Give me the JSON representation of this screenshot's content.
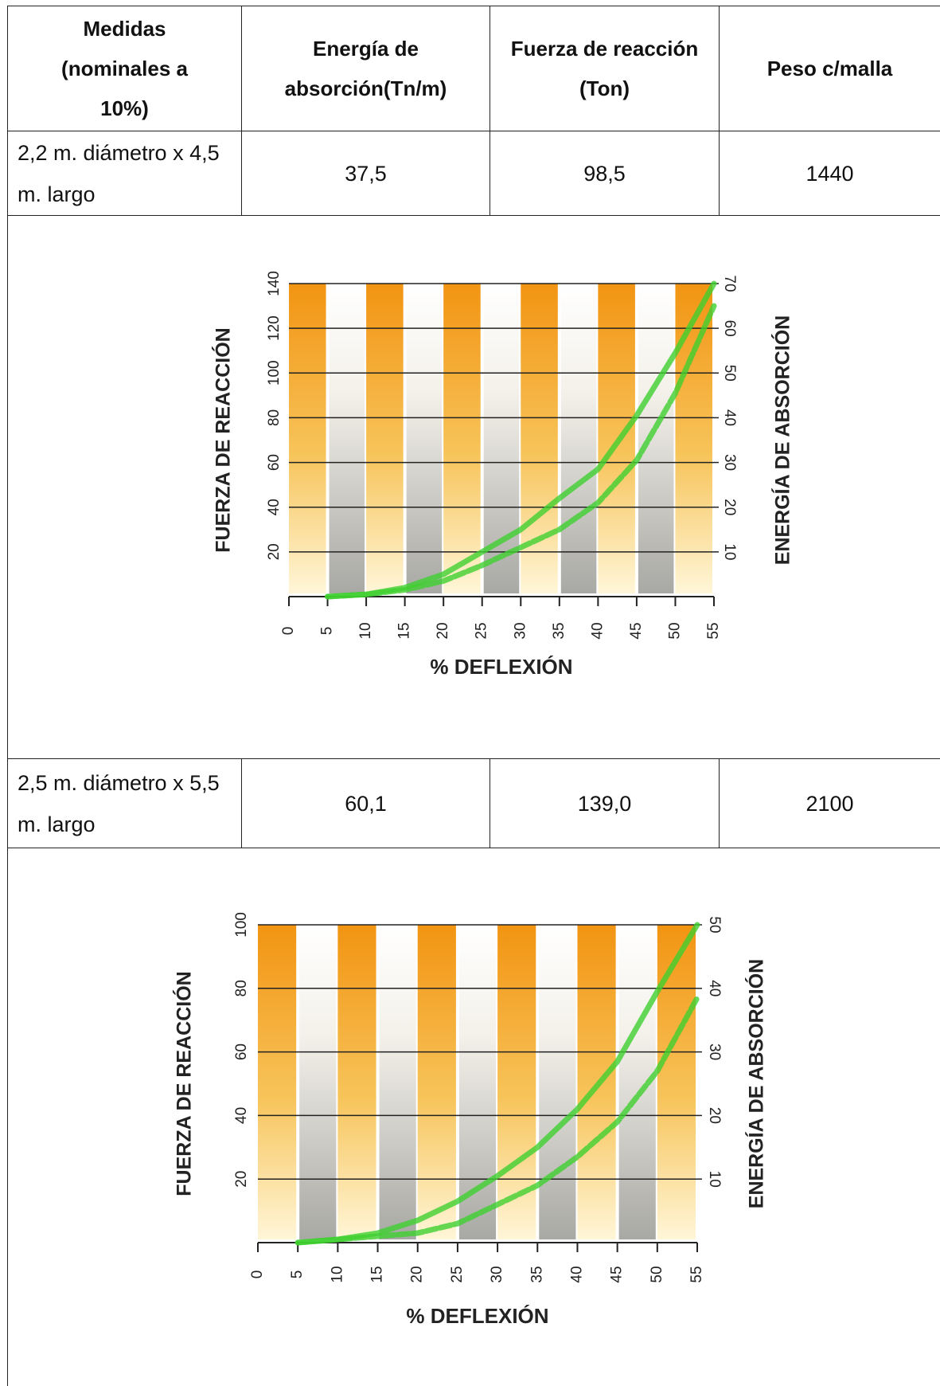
{
  "table": {
    "header": [
      "Medidas (nominales a 10%)",
      "Energía de absorción(Tn/m)",
      "Fuerza de reacción (Ton)",
      "Peso c/malla"
    ],
    "rows": [
      [
        "2,2 m. diámetro x 4,5 m. largo",
        "37,5",
        "98,5",
        "1440"
      ],
      [
        "2,5 m. diámetro x 5,5 m. largo",
        "60,1",
        "139,0",
        "2100"
      ]
    ]
  },
  "chart_data": [
    {
      "type": "line",
      "xlabel": "% DEFLEXIÓN",
      "ylabel": "FUERZA DE REACCIÓN",
      "y2label": "ENERGÍA DE ABSORCIÓN",
      "x": [
        5,
        10,
        15,
        20,
        25,
        30,
        35,
        40,
        45,
        50,
        55
      ],
      "series": [
        {
          "color": "#3fcf2f",
          "values": [
            0,
            1,
            4,
            10,
            20,
            30,
            44,
            57,
            81,
            109,
            140
          ]
        },
        {
          "color": "#3fcf2f",
          "values": [
            0,
            1,
            3,
            7,
            14,
            22,
            30,
            42,
            61,
            91,
            130
          ]
        }
      ],
      "xlim": [
        0,
        55
      ],
      "xticks": [
        0,
        5,
        10,
        15,
        20,
        25,
        30,
        35,
        40,
        45,
        50,
        55
      ],
      "ylim": [
        0,
        140
      ],
      "yticks": [
        20,
        40,
        60,
        80,
        100,
        120,
        140
      ],
      "y2lim": [
        0,
        70
      ],
      "y2ticks": [
        10,
        20,
        30,
        40,
        50,
        60,
        70
      ],
      "grid": true
    },
    {
      "type": "line",
      "xlabel": "% DEFLEXIÓN",
      "ylabel": "FUERZA DE REACCIÓN",
      "y2label": "ENERGÍA DE ABSORCIÓN",
      "x": [
        5,
        10,
        15,
        20,
        25,
        30,
        35,
        40,
        45,
        50,
        55
      ],
      "series": [
        {
          "color": "#3fcf2f",
          "values": [
            0,
            1,
            3,
            7,
            13,
            21,
            30,
            42,
            57,
            79,
            100
          ]
        },
        {
          "color": "#3fcf2f",
          "values": [
            0,
            1,
            2,
            3,
            6,
            12,
            18,
            27,
            38,
            54,
            77
          ]
        }
      ],
      "xlim": [
        0,
        55
      ],
      "xticks": [
        0,
        5,
        10,
        15,
        20,
        25,
        30,
        35,
        40,
        45,
        50,
        55
      ],
      "ylim": [
        0,
        100
      ],
      "yticks": [
        20,
        40,
        60,
        80,
        100
      ],
      "y2lim": [
        0,
        50
      ],
      "y2ticks": [
        10,
        20,
        30,
        40,
        50
      ],
      "grid": true
    }
  ]
}
